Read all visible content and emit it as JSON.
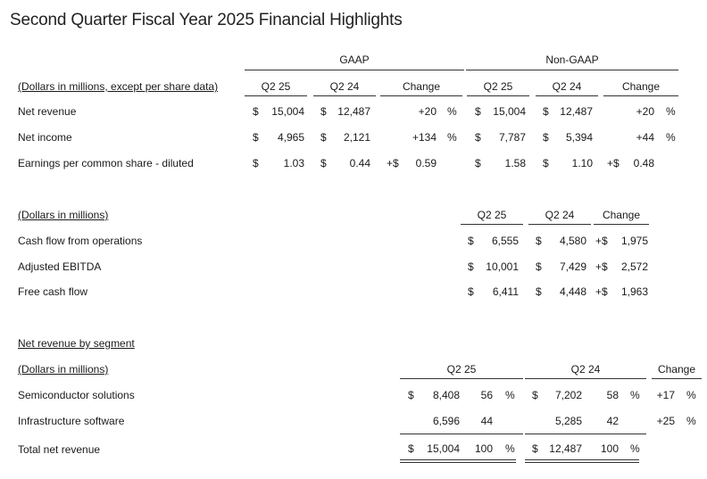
{
  "title": "Second Quarter Fiscal Year 2025 Financial Highlights",
  "sec1": {
    "gaap_label": "GAAP",
    "nongaap_label": "Non-GAAP",
    "units_label": "(Dollars in millions, except per share data)",
    "col_q2_25": "Q2 25",
    "col_q2_24": "Q2 24",
    "col_change": "Change",
    "rows": [
      {
        "label": "Net revenue",
        "g25": "15,004",
        "g24": "12,487",
        "gch": "+20",
        "gpct": "%",
        "n25": "15,004",
        "n24": "12,487",
        "nch": "+20",
        "npct": "%"
      },
      {
        "label": "Net income",
        "g25": "4,965",
        "g24": "2,121",
        "gch": "+134",
        "gpct": "%",
        "n25": "7,787",
        "n24": "5,394",
        "nch": "+44",
        "npct": "%"
      },
      {
        "label": "Earnings per common share - diluted",
        "g25": "1.03",
        "g24": "0.44",
        "gchp": "+$",
        "gch": "0.59",
        "n25": "1.58",
        "n24": "1.10",
        "nchp": "+$",
        "nch": "0.48"
      }
    ]
  },
  "sec2": {
    "units_label": "(Dollars in millions)",
    "col_q2_25": "Q2 25",
    "col_q2_24": "Q2 24",
    "col_change": "Change",
    "rows": [
      {
        "label": "Cash flow from operations",
        "v25": "6,555",
        "v24": "4,580",
        "chp": "+$",
        "ch": "1,975"
      },
      {
        "label": "Adjusted EBITDA",
        "v25": "10,001",
        "v24": "7,429",
        "chp": "+$",
        "ch": "2,572"
      },
      {
        "label": "Free cash flow",
        "v25": "6,411",
        "v24": "4,448",
        "chp": "+$",
        "ch": "1,963"
      }
    ]
  },
  "sec3": {
    "heading": "Net revenue by segment",
    "units_label": "(Dollars in millions)",
    "col_q2_25": "Q2 25",
    "col_q2_24": "Q2 24",
    "col_change": "Change",
    "rows": [
      {
        "label": "Semiconductor solutions",
        "d25": "$",
        "v25": "8,408",
        "p25": "56",
        "s25": "%",
        "d24": "$",
        "v24": "7,202",
        "p24": "58",
        "s24": "%",
        "ch": "+17",
        "chs": "%"
      },
      {
        "label": "Infrastructure software",
        "v25": "6,596",
        "p25": "44",
        "v24": "5,285",
        "p24": "42",
        "ch": "+25",
        "chs": "%"
      },
      {
        "label": "Total net revenue",
        "d25": "$",
        "v25": "15,004",
        "p25": "100",
        "s25": "%",
        "d24": "$",
        "v24": "12,487",
        "p24": "100",
        "s24": "%"
      }
    ]
  },
  "dollar": "$"
}
